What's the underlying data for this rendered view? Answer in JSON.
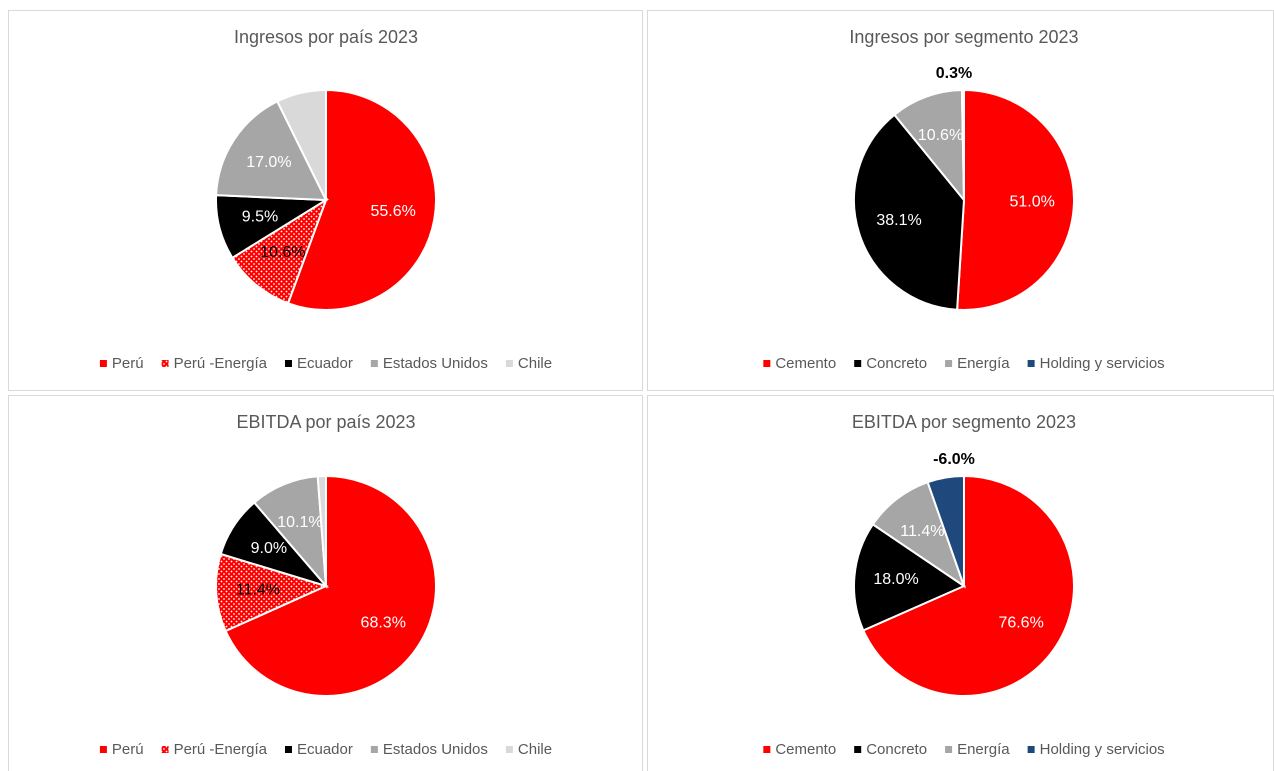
{
  "chart_data": [
    {
      "type": "pie",
      "title": "Ingresos por país 2023",
      "categories": [
        "Perú",
        "Perú -Energía",
        "Ecuador",
        "Estados Unidos",
        "Chile"
      ],
      "values": [
        55.6,
        10.6,
        9.5,
        17.0,
        7.3
      ],
      "value_labels": [
        "55.6%",
        "10.6%",
        "9.5%",
        "17.0%",
        null
      ],
      "colors": [
        "#ff0000",
        "#ff0000",
        "#000000",
        "#a6a6a6",
        "#d9d9d9"
      ],
      "patterns": [
        null,
        "dots",
        null,
        null,
        null
      ]
    },
    {
      "type": "pie",
      "title": "Ingresos por segmento 2023",
      "categories": [
        "Cemento",
        "Concreto",
        "Energía",
        "Holding y servicios"
      ],
      "values": [
        51.0,
        38.1,
        10.6,
        0.3
      ],
      "value_labels": [
        "51.0%",
        "38.1%",
        "10.6%",
        "0.3%"
      ],
      "colors": [
        "#ff0000",
        "#000000",
        "#a6a6a6",
        "#1f497d"
      ],
      "patterns": [
        null,
        null,
        null,
        null
      ]
    },
    {
      "type": "pie",
      "title": "EBITDA por país 2023",
      "categories": [
        "Perú",
        "Perú -Energía",
        "Ecuador",
        "Estados Unidos",
        "Chile"
      ],
      "values": [
        68.3,
        11.4,
        9.0,
        10.1,
        1.2
      ],
      "value_labels": [
        "68.3%",
        "11.4%",
        "9.0%",
        "10.1%",
        null
      ],
      "colors": [
        "#ff0000",
        "#ff0000",
        "#000000",
        "#a6a6a6",
        "#d9d9d9"
      ],
      "patterns": [
        null,
        "dots",
        null,
        null,
        null
      ]
    },
    {
      "type": "pie",
      "title": "EBITDA por segmento 2023",
      "categories": [
        "Cemento",
        "Concreto",
        "Energía",
        "Holding y servicios"
      ],
      "values": [
        76.6,
        18.0,
        11.4,
        -6.0
      ],
      "value_labels": [
        "76.6%",
        "18.0%",
        "11.4%",
        "-6.0%"
      ],
      "colors": [
        "#ff0000",
        "#000000",
        "#a6a6a6",
        "#1f497d"
      ],
      "patterns": [
        null,
        null,
        null,
        null
      ]
    }
  ]
}
